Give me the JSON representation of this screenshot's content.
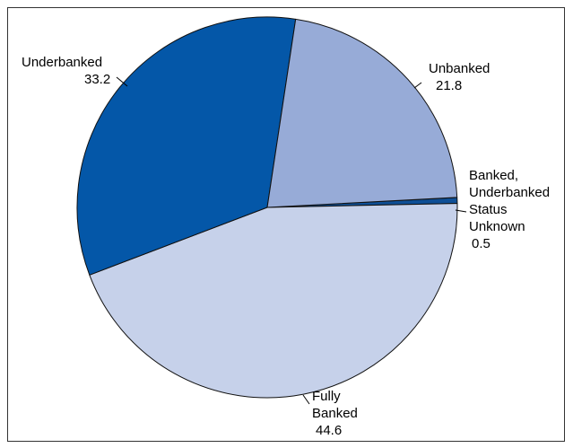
{
  "chart_data": {
    "type": "pie",
    "title": "",
    "start_angle_deg": -3,
    "direction": "clockwise",
    "slices": [
      {
        "label_lines": [
          "Banked,",
          "Underbanked",
          "Status",
          "Unknown"
        ],
        "value": 0.5,
        "value_text": "0.5",
        "color": "#0e4f96"
      },
      {
        "label_lines": [
          "Fully",
          "Banked"
        ],
        "value": 44.6,
        "value_text": "44.6",
        "color": "#c6d1ea"
      },
      {
        "label_lines": [
          "Underbanked"
        ],
        "value": 33.2,
        "value_text": "33.2",
        "color": "#0457a8"
      },
      {
        "label_lines": [
          "Unbanked"
        ],
        "value": 21.8,
        "value_text": "21.8",
        "color": "#97abd7"
      }
    ]
  }
}
